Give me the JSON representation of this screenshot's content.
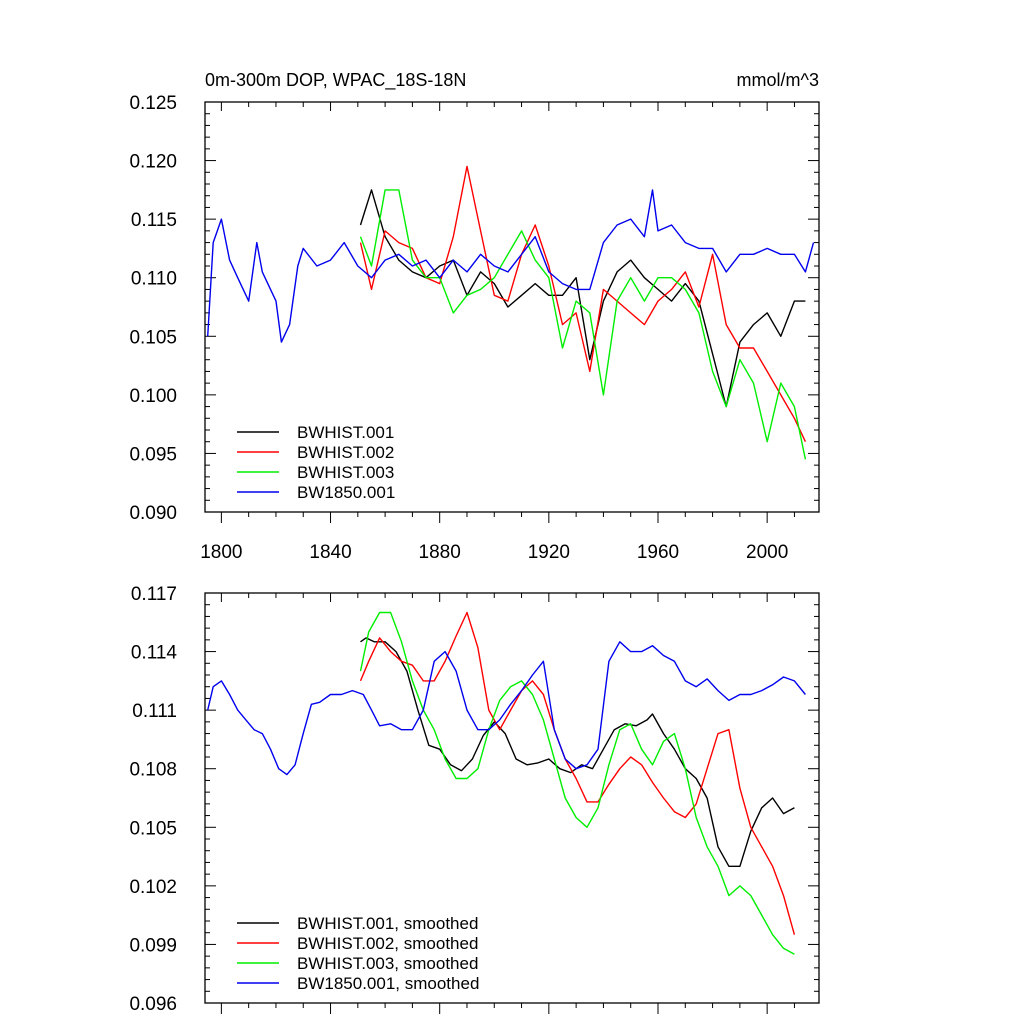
{
  "panels": [
    {
      "title_left": "0m-300m DOP, WPAC_18S-18N",
      "title_right": "mmol/m^3",
      "xlim": [
        1794,
        2019
      ],
      "ylim": [
        0.09,
        0.125
      ],
      "yticks": [
        0.09,
        0.095,
        0.1,
        0.105,
        0.11,
        0.115,
        0.12,
        0.125
      ],
      "ytick_labels": [
        "0.090",
        "0.095",
        "0.100",
        "0.105",
        "0.110",
        "0.115",
        "0.120",
        "0.125"
      ],
      "xticks": [
        1800,
        1840,
        1880,
        1920,
        1960,
        2000
      ],
      "xtick_labels": [
        "1800",
        "1840",
        "1880",
        "1920",
        "1960",
        "2000"
      ],
      "show_xtick_labels": true,
      "legend_placement": "bottom-left",
      "legend": [
        "BWHIST.001",
        "BWHIST.002",
        "BWHIST.003",
        "BW1850.001"
      ]
    },
    {
      "title_left": "",
      "title_right": "",
      "xlim": [
        1794,
        2019
      ],
      "ylim": [
        0.096,
        0.117
      ],
      "yticks": [
        0.096,
        0.099,
        0.102,
        0.105,
        0.108,
        0.111,
        0.114,
        0.117
      ],
      "ytick_labels": [
        "0.096",
        "0.099",
        "0.102",
        "0.105",
        "0.108",
        "0.111",
        "0.114",
        "0.117"
      ],
      "xticks": [
        1800,
        1840,
        1880,
        1920,
        1960,
        2000
      ],
      "xtick_labels": [
        "",
        "",
        "",
        "",
        "",
        ""
      ],
      "show_xtick_labels": false,
      "legend_placement": "bottom-left",
      "legend": [
        "BWHIST.001, smoothed",
        "BWHIST.002, smoothed",
        "BWHIST.003, smoothed",
        "BW1850.001, smoothed"
      ]
    }
  ],
  "chart_data": [
    {
      "type": "line",
      "title": "0m-300m DOP, WPAC_18S-18N",
      "units": "mmol/m^3",
      "xlim": [
        1794,
        2019
      ],
      "ylim": [
        0.09,
        0.125
      ],
      "grid": false,
      "legend_placement": "bottom-left",
      "series": [
        {
          "name": "BWHIST.001",
          "color": "#000000",
          "x": [
            1851,
            1855,
            1860,
            1865,
            1870,
            1875,
            1880,
            1885,
            1890,
            1895,
            1900,
            1905,
            1910,
            1915,
            1920,
            1925,
            1930,
            1935,
            1940,
            1945,
            1950,
            1955,
            1960,
            1965,
            1970,
            1975,
            1980,
            1985,
            1990,
            1995,
            2000,
            2005,
            2010,
            2014
          ],
          "y": [
            0.1145,
            0.1175,
            0.1135,
            0.1115,
            0.1105,
            0.11,
            0.111,
            0.1115,
            0.1085,
            0.1105,
            0.1095,
            0.1075,
            0.1085,
            0.1095,
            0.1085,
            0.1085,
            0.11,
            0.103,
            0.108,
            0.1105,
            0.1115,
            0.11,
            0.109,
            0.108,
            0.1095,
            0.108,
            0.1035,
            0.099,
            0.1045,
            0.106,
            0.107,
            0.105,
            0.108,
            0.108
          ]
        },
        {
          "name": "BWHIST.002",
          "color": "#ff0000",
          "x": [
            1851,
            1855,
            1860,
            1865,
            1870,
            1875,
            1880,
            1885,
            1890,
            1895,
            1900,
            1905,
            1910,
            1915,
            1920,
            1925,
            1930,
            1935,
            1940,
            1945,
            1950,
            1955,
            1960,
            1965,
            1970,
            1975,
            1980,
            1985,
            1990,
            1995,
            2000,
            2005,
            2010,
            2014
          ],
          "y": [
            0.113,
            0.109,
            0.114,
            0.113,
            0.1125,
            0.11,
            0.1095,
            0.1135,
            0.1195,
            0.114,
            0.1085,
            0.108,
            0.112,
            0.1145,
            0.111,
            0.106,
            0.107,
            0.102,
            0.109,
            0.108,
            0.107,
            0.106,
            0.108,
            0.109,
            0.1105,
            0.1075,
            0.112,
            0.106,
            0.104,
            0.104,
            0.102,
            0.1,
            0.098,
            0.096
          ]
        },
        {
          "name": "BWHIST.003",
          "color": "#00ee00",
          "x": [
            1851,
            1855,
            1860,
            1865,
            1870,
            1875,
            1880,
            1885,
            1890,
            1895,
            1900,
            1905,
            1910,
            1915,
            1920,
            1925,
            1930,
            1935,
            1940,
            1945,
            1950,
            1955,
            1960,
            1965,
            1970,
            1975,
            1980,
            1985,
            1990,
            1995,
            2000,
            2005,
            2010,
            2014
          ],
          "y": [
            0.1135,
            0.111,
            0.1175,
            0.1175,
            0.1115,
            0.11,
            0.11,
            0.107,
            0.1085,
            0.109,
            0.11,
            0.112,
            0.114,
            0.1115,
            0.11,
            0.104,
            0.108,
            0.107,
            0.1,
            0.108,
            0.11,
            0.108,
            0.11,
            0.11,
            0.109,
            0.107,
            0.102,
            0.099,
            0.103,
            0.101,
            0.096,
            0.101,
            0.099,
            0.0945
          ]
        },
        {
          "name": "BW1850.001",
          "color": "#0000ee",
          "x": [
            1795,
            1797,
            1800,
            1803,
            1806,
            1810,
            1813,
            1815,
            1820,
            1822,
            1825,
            1828,
            1830,
            1835,
            1840,
            1845,
            1850,
            1855,
            1860,
            1865,
            1870,
            1875,
            1880,
            1885,
            1890,
            1895,
            1900,
            1905,
            1910,
            1915,
            1920,
            1925,
            1930,
            1935,
            1940,
            1945,
            1950,
            1955,
            1958,
            1960,
            1965,
            1970,
            1975,
            1980,
            1985,
            1990,
            1995,
            2000,
            2005,
            2010,
            2014,
            2017
          ],
          "y": [
            0.105,
            0.113,
            0.115,
            0.1115,
            0.11,
            0.108,
            0.113,
            0.1105,
            0.108,
            0.1045,
            0.106,
            0.111,
            0.1125,
            0.111,
            0.1115,
            0.113,
            0.111,
            0.11,
            0.1115,
            0.112,
            0.111,
            0.1115,
            0.11,
            0.1115,
            0.1105,
            0.112,
            0.111,
            0.1105,
            0.112,
            0.1135,
            0.1105,
            0.1095,
            0.109,
            0.109,
            0.113,
            0.1145,
            0.115,
            0.1135,
            0.1175,
            0.114,
            0.1145,
            0.113,
            0.1125,
            0.1125,
            0.1105,
            0.112,
            0.112,
            0.1125,
            0.112,
            0.112,
            0.1105,
            0.113
          ]
        }
      ]
    },
    {
      "type": "line",
      "title": "",
      "xlim": [
        1794,
        2019
      ],
      "ylim": [
        0.096,
        0.117
      ],
      "grid": false,
      "legend_placement": "bottom-left",
      "series": [
        {
          "name": "BWHIST.001, smoothed",
          "color": "#000000",
          "x": [
            1851,
            1853,
            1856,
            1860,
            1864,
            1868,
            1872,
            1876,
            1880,
            1884,
            1888,
            1892,
            1896,
            1900,
            1904,
            1908,
            1912,
            1916,
            1920,
            1924,
            1928,
            1932,
            1936,
            1940,
            1944,
            1948,
            1952,
            1956,
            1958,
            1962,
            1966,
            1970,
            1974,
            1978,
            1982,
            1986,
            1990,
            1994,
            1998,
            2002,
            2006,
            2010
          ],
          "y": [
            0.1145,
            0.1147,
            0.1145,
            0.1145,
            0.114,
            0.113,
            0.111,
            0.1092,
            0.109,
            0.1082,
            0.1079,
            0.1085,
            0.1097,
            0.1104,
            0.1098,
            0.1085,
            0.1082,
            0.1083,
            0.1085,
            0.108,
            0.1078,
            0.1082,
            0.108,
            0.109,
            0.11,
            0.1103,
            0.1102,
            0.1105,
            0.1108,
            0.1098,
            0.109,
            0.108,
            0.1075,
            0.1065,
            0.104,
            0.103,
            0.103,
            0.1048,
            0.106,
            0.1065,
            0.1057,
            0.106
          ]
        },
        {
          "name": "BWHIST.002, smoothed",
          "color": "#ff0000",
          "x": [
            1851,
            1854,
            1858,
            1862,
            1866,
            1870,
            1874,
            1878,
            1882,
            1886,
            1890,
            1894,
            1898,
            1902,
            1906,
            1910,
            1914,
            1918,
            1922,
            1926,
            1930,
            1934,
            1938,
            1942,
            1946,
            1950,
            1954,
            1958,
            1962,
            1966,
            1970,
            1974,
            1978,
            1982,
            1986,
            1990,
            1994,
            1998,
            2002,
            2006,
            2010
          ],
          "y": [
            0.1125,
            0.1135,
            0.1147,
            0.114,
            0.1135,
            0.1133,
            0.1125,
            0.1125,
            0.1135,
            0.1148,
            0.116,
            0.1142,
            0.111,
            0.11,
            0.111,
            0.112,
            0.1125,
            0.1118,
            0.11,
            0.1085,
            0.1075,
            0.1063,
            0.1063,
            0.1072,
            0.108,
            0.1086,
            0.1082,
            0.1073,
            0.1065,
            0.1058,
            0.1055,
            0.1062,
            0.108,
            0.1098,
            0.11,
            0.107,
            0.105,
            0.104,
            0.103,
            0.1015,
            0.0995
          ]
        },
        {
          "name": "BWHIST.003, smoothed",
          "color": "#00ee00",
          "x": [
            1851,
            1854,
            1858,
            1862,
            1866,
            1870,
            1874,
            1878,
            1882,
            1886,
            1890,
            1894,
            1898,
            1902,
            1906,
            1910,
            1914,
            1918,
            1922,
            1926,
            1930,
            1934,
            1938,
            1942,
            1946,
            1950,
            1954,
            1958,
            1962,
            1966,
            1970,
            1974,
            1978,
            1982,
            1986,
            1990,
            1994,
            1998,
            2002,
            2006,
            2010
          ],
          "y": [
            0.113,
            0.115,
            0.116,
            0.116,
            0.1145,
            0.1125,
            0.111,
            0.11,
            0.1085,
            0.1075,
            0.1075,
            0.108,
            0.11,
            0.1115,
            0.1122,
            0.1125,
            0.1118,
            0.1105,
            0.1085,
            0.1065,
            0.1055,
            0.105,
            0.106,
            0.1082,
            0.11,
            0.1103,
            0.109,
            0.1082,
            0.1094,
            0.1098,
            0.108,
            0.1055,
            0.104,
            0.103,
            0.1015,
            0.102,
            0.1015,
            0.1005,
            0.0995,
            0.0988,
            0.0985
          ]
        },
        {
          "name": "BW1850.001, smoothed",
          "color": "#0000ee",
          "x": [
            1795,
            1797,
            1800,
            1803,
            1806,
            1809,
            1812,
            1815,
            1818,
            1821,
            1824,
            1827,
            1830,
            1833,
            1836,
            1840,
            1844,
            1848,
            1852,
            1855,
            1858,
            1862,
            1866,
            1870,
            1874,
            1878,
            1882,
            1886,
            1890,
            1894,
            1898,
            1902,
            1906,
            1910,
            1914,
            1918,
            1922,
            1926,
            1930,
            1934,
            1938,
            1942,
            1946,
            1950,
            1954,
            1958,
            1962,
            1966,
            1970,
            1974,
            1978,
            1982,
            1986,
            1990,
            1994,
            1998,
            2002,
            2006,
            2010,
            2014
          ],
          "y": [
            0.111,
            0.1122,
            0.1125,
            0.1118,
            0.111,
            0.1105,
            0.11,
            0.1098,
            0.109,
            0.108,
            0.1077,
            0.1082,
            0.1098,
            0.1113,
            0.1114,
            0.1118,
            0.1118,
            0.112,
            0.1118,
            0.111,
            0.1102,
            0.1103,
            0.11,
            0.11,
            0.111,
            0.1135,
            0.114,
            0.113,
            0.111,
            0.11,
            0.11,
            0.1105,
            0.1113,
            0.112,
            0.1128,
            0.1135,
            0.11,
            0.1085,
            0.108,
            0.1082,
            0.109,
            0.1135,
            0.1145,
            0.114,
            0.114,
            0.1143,
            0.1138,
            0.1135,
            0.1125,
            0.1122,
            0.1126,
            0.112,
            0.1115,
            0.1118,
            0.1118,
            0.112,
            0.1123,
            0.1127,
            0.1125,
            0.1118
          ]
        }
      ]
    }
  ]
}
